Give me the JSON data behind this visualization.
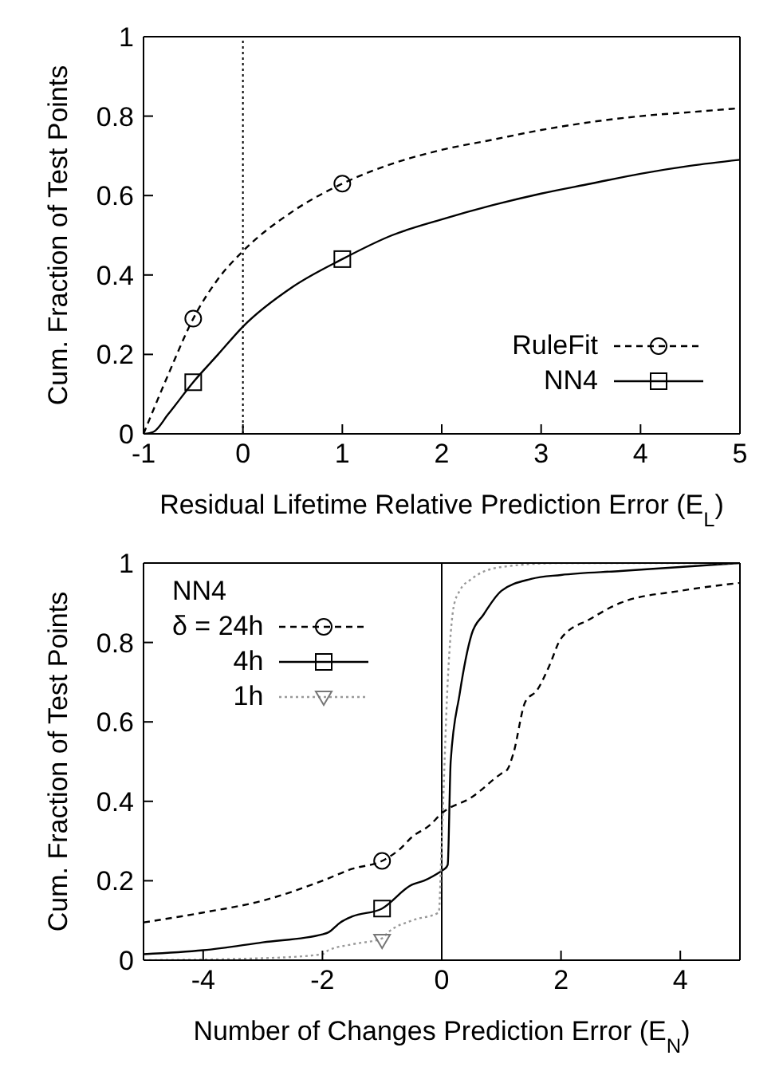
{
  "chart_data": [
    {
      "type": "line",
      "xlabel": "Residual Lifetime Relative Prediction Error (E$_{L}$)",
      "ylabel": "Cum. Fraction of Test Points",
      "xlim": [
        -1,
        5
      ],
      "xticks": [
        -1,
        0,
        1,
        2,
        3,
        4,
        5
      ],
      "ylim": [
        0,
        1
      ],
      "yticks": [
        0,
        0.2,
        0.4,
        0.6,
        0.8,
        1
      ],
      "grid": false,
      "legend": "bottom right",
      "ref_lines": [
        {
          "axis": "x",
          "value": 0,
          "color": "#000000",
          "line_style": "dotted"
        }
      ],
      "series": [
        {
          "name": "RuleFit",
          "color": "#000000",
          "line_style": "dashed",
          "x": [
            -1,
            -0.75,
            -0.5,
            -0.25,
            0,
            0.5,
            1,
            1.5,
            2,
            2.5,
            3,
            3.5,
            4,
            4.5,
            5
          ],
          "values": [
            0,
            0.15,
            0.29,
            0.39,
            0.46,
            0.56,
            0.63,
            0.68,
            0.715,
            0.74,
            0.765,
            0.785,
            0.8,
            0.81,
            0.82
          ]
        },
        {
          "name": "NN4",
          "color": "#000000",
          "line_style": "solid",
          "x": [
            -1,
            -0.9,
            -0.75,
            -0.5,
            -0.25,
            0,
            0.5,
            1,
            1.5,
            2,
            2.5,
            3,
            3.5,
            4,
            4.5,
            5
          ],
          "values": [
            0,
            0.005,
            0.05,
            0.13,
            0.2,
            0.27,
            0.37,
            0.44,
            0.5,
            0.54,
            0.575,
            0.605,
            0.63,
            0.655,
            0.675,
            0.69
          ]
        },
        {
          "type": "scatter",
          "color": "#000000",
          "marker": "circle",
          "x": [
            -0.5,
            1
          ],
          "values": [
            0.29,
            0.63
          ]
        },
        {
          "type": "scatter",
          "color": "#000000",
          "marker": "square",
          "x": [
            -0.5,
            1
          ],
          "values": [
            0.13,
            0.44
          ]
        }
      ]
    },
    {
      "type": "line",
      "xlabel": "Number of Changes Prediction Error (E$_{N}$)",
      "ylabel": "Cum. Fraction of Test Points",
      "legend_title": "NN4",
      "xlim": [
        -5,
        5
      ],
      "xticks": [
        -4,
        -2,
        0,
        2,
        4
      ],
      "ylim": [
        0,
        1
      ],
      "yticks": [
        0,
        0.2,
        0.4,
        0.6,
        0.8,
        1
      ],
      "grid": false,
      "legend": "top left",
      "ref_lines": [
        {
          "axis": "x",
          "value": 0,
          "color": "#000000",
          "line_style": "solid"
        }
      ],
      "series": [
        {
          "name": "δ = 24h",
          "color": "#000000",
          "line_style": "dashed",
          "x": [
            -5,
            -4,
            -3,
            -2,
            -1.5,
            -1,
            -0.7,
            -0.5,
            -0.2,
            0,
            0.5,
            1,
            1.1,
            1.2,
            1.4,
            1.6,
            1.8,
            2,
            2.5,
            3,
            4,
            5
          ],
          "values": [
            0.095,
            0.12,
            0.15,
            0.2,
            0.23,
            0.25,
            0.28,
            0.31,
            0.34,
            0.37,
            0.41,
            0.47,
            0.48,
            0.52,
            0.65,
            0.68,
            0.74,
            0.81,
            0.86,
            0.9,
            0.93,
            0.95
          ]
        },
        {
          "name": "4h",
          "color": "#000000",
          "line_style": "solid",
          "x": [
            -5,
            -4,
            -3,
            -2,
            -1.9,
            -1.7,
            -1.5,
            -1,
            -0.5,
            -0.3,
            0,
            0.05,
            0.1,
            0.15,
            0.3,
            0.5,
            0.7,
            1,
            1.5,
            2,
            3,
            4,
            5
          ],
          "values": [
            0.015,
            0.025,
            0.045,
            0.065,
            0.07,
            0.095,
            0.11,
            0.13,
            0.19,
            0.2,
            0.225,
            0.23,
            0.24,
            0.5,
            0.67,
            0.82,
            0.87,
            0.93,
            0.96,
            0.97,
            0.98,
            0.99,
            1
          ]
        },
        {
          "name": "1h",
          "color": "#999999",
          "line_style": "dotted",
          "x": [
            -5,
            -3,
            -2,
            -1.9,
            -1.5,
            -1,
            -0.9,
            -0.5,
            -0.05,
            0,
            0.1,
            0.2,
            0.3,
            0.5,
            1,
            2,
            5
          ],
          "values": [
            0,
            0.005,
            0.015,
            0.025,
            0.04,
            0.055,
            0.07,
            0.1,
            0.12,
            0.3,
            0.7,
            0.89,
            0.93,
            0.96,
            0.99,
            1,
            1
          ]
        },
        {
          "type": "scatter",
          "color": "#000000",
          "marker": "circle",
          "x": [
            -1
          ],
          "values": [
            0.25
          ]
        },
        {
          "type": "scatter",
          "color": "#000000",
          "marker": "square",
          "x": [
            -1
          ],
          "values": [
            0.13
          ]
        },
        {
          "type": "scatter",
          "color": "#777777",
          "marker": "triangle",
          "x": [
            -1
          ],
          "values": [
            0.05
          ]
        }
      ]
    }
  ]
}
